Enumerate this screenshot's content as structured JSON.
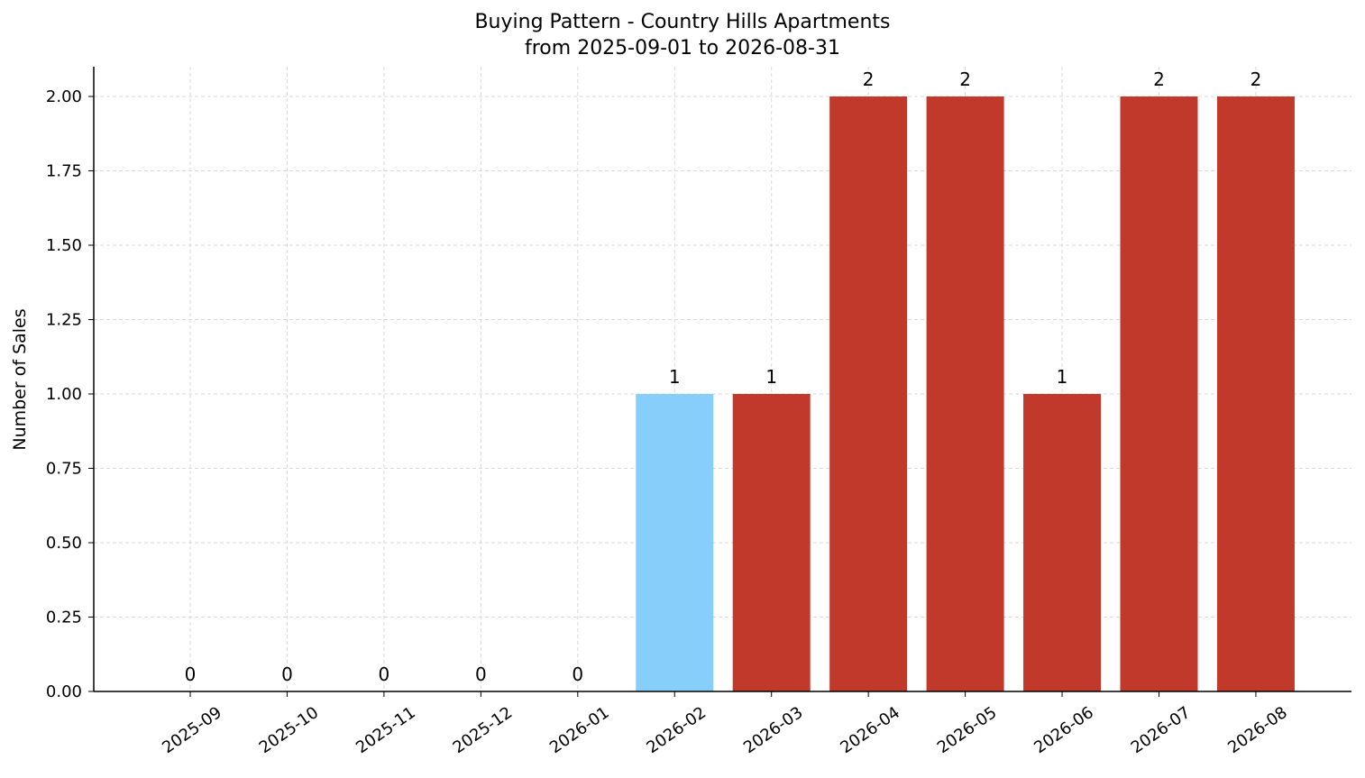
{
  "chart_data": {
    "type": "bar",
    "title": "Buying Pattern - Country Hills Apartments",
    "subtitle": "from 2025-09-01 to 2026-08-31",
    "xlabel": "",
    "ylabel": "Number of Sales",
    "categories": [
      "2025-09",
      "2025-10",
      "2025-11",
      "2025-12",
      "2026-01",
      "2026-02",
      "2026-03",
      "2026-04",
      "2026-05",
      "2026-06",
      "2026-07",
      "2026-08"
    ],
    "values": [
      0,
      0,
      0,
      0,
      0,
      1,
      1,
      2,
      2,
      1,
      2,
      2
    ],
    "data_labels": [
      "0",
      "0",
      "0",
      "0",
      "0",
      "1",
      "1",
      "2",
      "2",
      "1",
      "2",
      "2"
    ],
    "yticks": [
      "0.00",
      "0.25",
      "0.50",
      "0.75",
      "1.00",
      "1.25",
      "1.50",
      "1.75",
      "2.00"
    ],
    "ylim": [
      0,
      2.1
    ],
    "grid": true,
    "colors": {
      "highlight": "#87CEFA",
      "default": "#C0392B",
      "highlight_category": "2026-02"
    }
  }
}
